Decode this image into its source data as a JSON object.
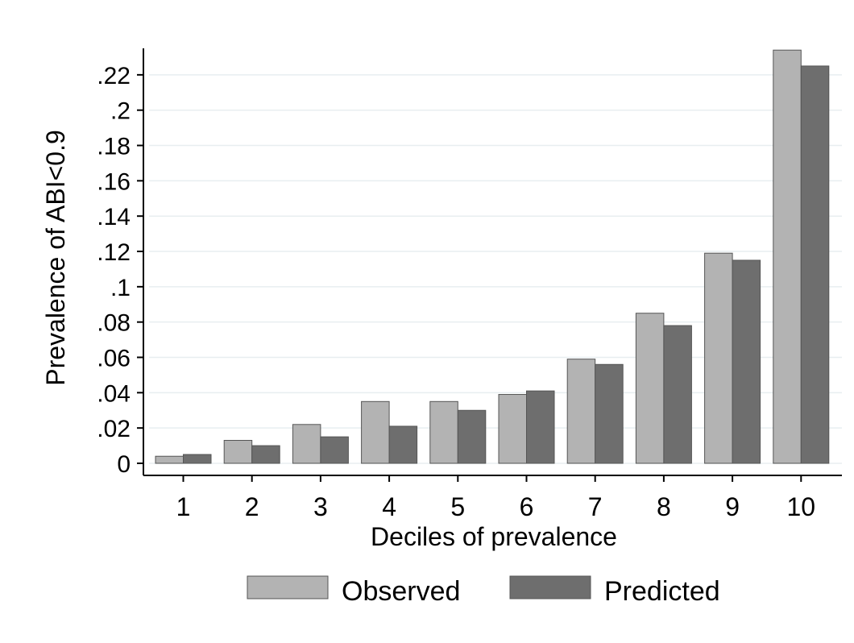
{
  "chart_data": {
    "type": "bar",
    "title": "",
    "xlabel": "Deciles of prevalence",
    "ylabel": "Prevalence of ABI<0.9",
    "categories": [
      "1",
      "2",
      "3",
      "4",
      "5",
      "6",
      "7",
      "8",
      "9",
      "10"
    ],
    "ylim": [
      0,
      0.235
    ],
    "yticks": [
      0,
      0.02,
      0.04,
      0.06,
      0.08,
      0.1,
      0.12,
      0.14,
      0.16,
      0.18,
      0.2,
      0.22
    ],
    "ytick_labels": [
      "0",
      ".02",
      ".04",
      ".06",
      ".08",
      ".1",
      ".12",
      ".14",
      ".16",
      ".18",
      ".2",
      ".22"
    ],
    "grid": true,
    "legend_position": "bottom",
    "series": [
      {
        "name": "Observed",
        "color": "#b3b3b3",
        "values": [
          0.004,
          0.013,
          0.022,
          0.035,
          0.035,
          0.039,
          0.059,
          0.085,
          0.119,
          0.234
        ]
      },
      {
        "name": "Predicted",
        "color": "#6e6e6e",
        "values": [
          0.005,
          0.01,
          0.015,
          0.021,
          0.03,
          0.041,
          0.056,
          0.078,
          0.115,
          0.225
        ]
      }
    ]
  }
}
